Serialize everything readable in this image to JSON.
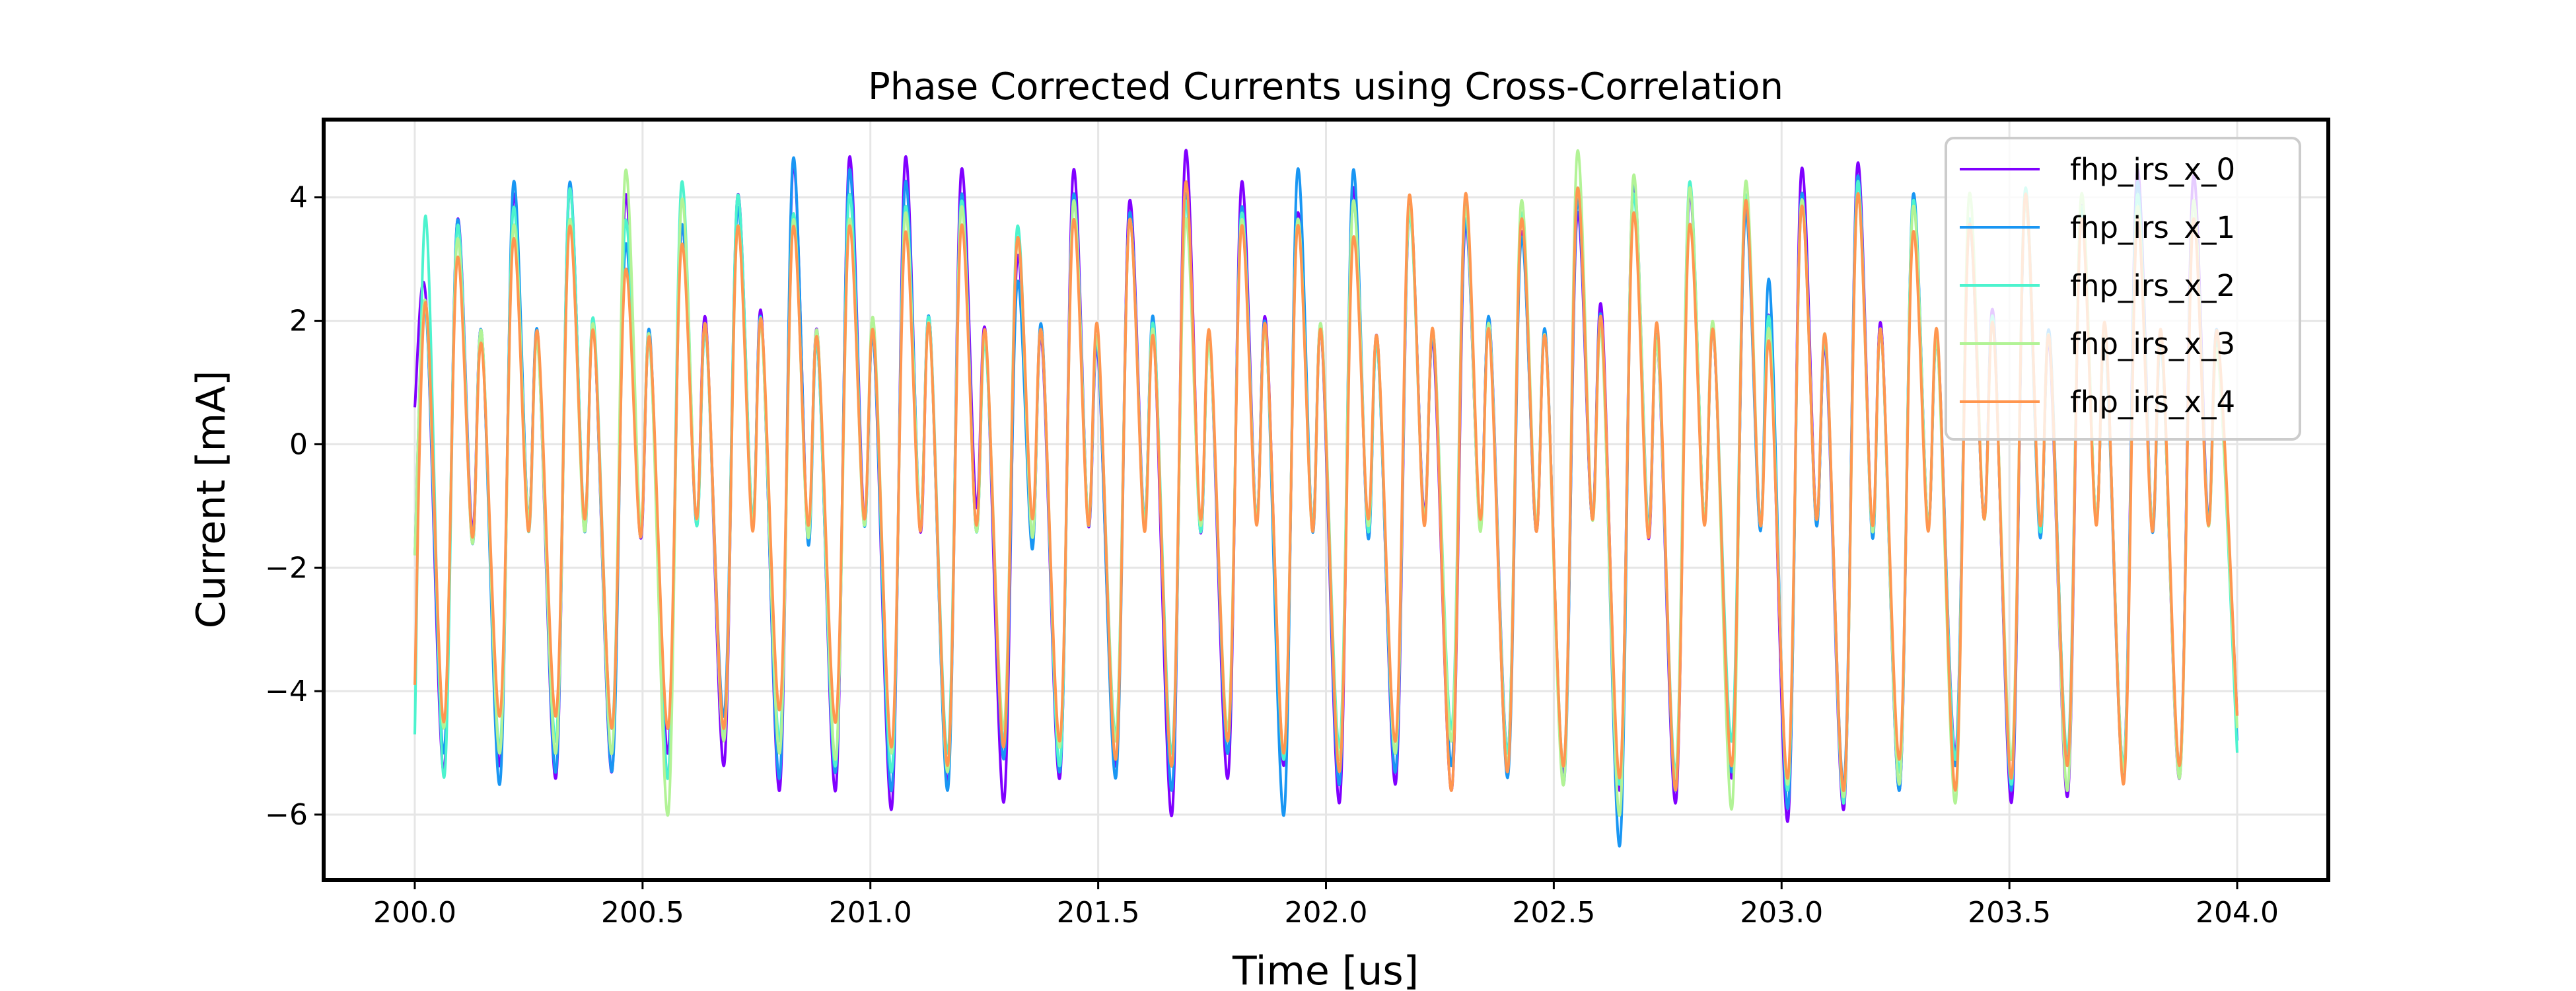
{
  "chart_data": {
    "type": "line",
    "title": "Phase Corrected Currents using Cross-Correlation",
    "xlabel": "Time [us]",
    "ylabel": "Current [mA]",
    "xlim": [
      199.8,
      204.2
    ],
    "ylim": [
      -7.06,
      5.26
    ],
    "xticks": [
      "200.0",
      "200.5",
      "201.0",
      "201.5",
      "202.0",
      "202.5",
      "203.0",
      "203.5",
      "204.0"
    ],
    "yticks": [
      "−6",
      "−4",
      "−2",
      "0",
      "2",
      "4"
    ],
    "grid": true,
    "legend_position": "top-right",
    "x": [
      200.0,
      200.024,
      200.064,
      200.093,
      200.126,
      200.147,
      200.187,
      200.216,
      200.249,
      200.27,
      200.31,
      200.339,
      200.372,
      200.393,
      200.433,
      200.462,
      200.495,
      200.516,
      200.556,
      200.585,
      200.618,
      200.639,
      200.679,
      200.708,
      200.741,
      200.761,
      200.801,
      200.83,
      200.863,
      200.884,
      200.924,
      200.953,
      200.986,
      201.007,
      201.047,
      201.076,
      201.109,
      201.13,
      201.17,
      201.199,
      201.232,
      201.253,
      201.293,
      201.322,
      201.355,
      201.376,
      201.416,
      201.445,
      201.478,
      201.499,
      201.539,
      201.568,
      201.601,
      201.622,
      201.662,
      201.691,
      201.724,
      201.745,
      201.785,
      201.814,
      201.847,
      201.868,
      201.908,
      201.937,
      201.97,
      201.99,
      202.03,
      202.059,
      202.092,
      202.113,
      202.153,
      202.182,
      202.215,
      202.236,
      202.276,
      202.305,
      202.338,
      202.359,
      202.399,
      202.428,
      202.461,
      202.482,
      202.522,
      202.551,
      202.584,
      202.605,
      202.645,
      202.674,
      202.707,
      202.728,
      202.768,
      202.797,
      202.83,
      202.851,
      202.891,
      202.92,
      202.953,
      202.974,
      203.014,
      203.043,
      203.076,
      203.097,
      203.137,
      203.166,
      203.199,
      203.219,
      203.259,
      203.288,
      203.321,
      203.342,
      203.382,
      203.411,
      203.444,
      203.465,
      203.505,
      203.534,
      203.567,
      203.588,
      203.628,
      203.657,
      203.69,
      203.711,
      203.751,
      203.78,
      203.813,
      203.834,
      203.874,
      203.903,
      203.936,
      203.957,
      204.0
    ],
    "series": [
      {
        "name": "fhp_irs_x_0",
        "color": "#8000ff",
        "values": [
          0.6,
          2.4,
          -5.3,
          3.6,
          -1.4,
          1.8,
          -5.2,
          4.0,
          -1.2,
          1.7,
          -5.4,
          4.1,
          -1.3,
          1.9,
          -5.3,
          4.0,
          -1.5,
          1.7,
          -5.0,
          3.5,
          -1.2,
          2.0,
          -5.2,
          4.0,
          -1.3,
          2.1,
          -5.6,
          4.5,
          -1.5,
          1.8,
          -5.6,
          4.6,
          -1.2,
          1.7,
          -5.9,
          4.6,
          -1.4,
          2.0,
          -5.5,
          4.4,
          -1.0,
          1.8,
          -5.8,
          3.0,
          -1.6,
          1.7,
          -5.4,
          4.4,
          -1.3,
          1.5,
          -5.2,
          3.9,
          -1.2,
          1.8,
          -6.0,
          4.7,
          -1.4,
          1.7,
          -5.4,
          4.2,
          -1.2,
          2.0,
          -5.2,
          3.7,
          -1.3,
          1.8,
          -5.8,
          4.1,
          -1.5,
          1.7,
          -5.5,
          3.7,
          -1.1,
          1.6,
          -5.6,
          3.5,
          -1.3,
          2.0,
          -5.0,
          3.4,
          -1.4,
          1.7,
          -5.3,
          3.7,
          -1.2,
          2.2,
          -5.6,
          4.2,
          -1.5,
          1.6,
          -5.8,
          4.0,
          -1.2,
          1.8,
          -5.4,
          3.8,
          -1.3,
          2.0,
          -6.1,
          4.4,
          -1.2,
          1.5,
          -5.9,
          4.5,
          -1.4,
          1.9,
          -5.6,
          3.9,
          -1.3,
          1.7,
          -5.0,
          3.6,
          -1.2,
          2.1,
          -5.8,
          4.0,
          -1.4,
          1.6,
          -5.7,
          3.8,
          -1.2,
          1.8,
          -5.2,
          4.4,
          -1.3,
          1.7,
          -5.4,
          4.3,
          -1.2,
          1.6,
          -4.4
        ]
      },
      {
        "name": "fhp_irs_x_1",
        "color": "#1996f3",
        "values": [
          -1.8,
          2.2,
          -5.0,
          3.6,
          -1.6,
          1.8,
          -5.5,
          4.2,
          -1.2,
          1.8,
          -5.3,
          4.2,
          -1.4,
          1.9,
          -5.3,
          3.2,
          -1.5,
          1.8,
          -5.4,
          3.5,
          -1.3,
          1.8,
          -4.4,
          3.8,
          -1.2,
          2.0,
          -5.4,
          4.6,
          -1.6,
          1.6,
          -5.3,
          4.4,
          -1.3,
          1.7,
          -5.6,
          4.2,
          -1.2,
          2.0,
          -5.6,
          4.0,
          -1.4,
          1.7,
          -5.1,
          2.6,
          -1.7,
          1.9,
          -5.3,
          4.0,
          -1.2,
          1.6,
          -5.4,
          3.7,
          -1.3,
          2.0,
          -5.6,
          4.0,
          -1.3,
          1.7,
          -5.0,
          3.8,
          -1.2,
          1.9,
          -6.0,
          4.4,
          -1.4,
          1.8,
          -5.5,
          4.4,
          -1.5,
          1.6,
          -5.3,
          3.9,
          -1.2,
          1.7,
          -5.2,
          3.6,
          -1.3,
          2.0,
          -5.4,
          3.3,
          -1.4,
          1.8,
          -5.5,
          3.9,
          -1.2,
          2.0,
          -6.5,
          4.2,
          -1.3,
          1.7,
          -5.6,
          4.1,
          -1.2,
          1.8,
          -5.3,
          3.7,
          -1.4,
          2.6,
          -5.9,
          4.0,
          -1.3,
          1.6,
          -5.5,
          4.3,
          -1.5,
          1.8,
          -5.6,
          4.0,
          -1.3,
          1.6,
          -5.2,
          3.5,
          -1.2,
          2.0,
          -5.6,
          3.9,
          -1.5,
          1.8,
          -5.1,
          3.7,
          -1.2,
          1.7,
          -5.4,
          4.2,
          -1.4,
          1.6,
          -5.2,
          3.9,
          -1.2,
          1.8,
          -4.8
        ]
      },
      {
        "name": "fhp_irs_x_2",
        "color": "#4df3ce",
        "values": [
          -4.7,
          3.7,
          -5.4,
          3.5,
          -1.5,
          1.8,
          -4.9,
          3.8,
          -1.4,
          1.7,
          -4.8,
          4.1,
          -1.2,
          2.0,
          -4.6,
          3.6,
          -1.4,
          1.6,
          -5.4,
          4.2,
          -1.3,
          1.8,
          -4.7,
          4.0,
          -1.2,
          2.0,
          -4.8,
          3.7,
          -1.5,
          1.6,
          -5.2,
          4.0,
          -1.3,
          1.8,
          -5.3,
          3.8,
          -1.2,
          2.0,
          -5.0,
          3.9,
          -1.4,
          1.6,
          -4.8,
          3.5,
          -1.5,
          1.8,
          -5.2,
          3.9,
          -1.3,
          1.7,
          -4.7,
          3.6,
          -1.2,
          1.9,
          -5.0,
          3.9,
          -1.4,
          1.6,
          -4.8,
          3.7,
          -1.2,
          1.8,
          -5.1,
          3.6,
          -1.3,
          1.9,
          -4.9,
          3.9,
          -1.4,
          1.6,
          -5.0,
          3.7,
          -1.2,
          1.8,
          -4.6,
          3.9,
          -1.3,
          1.9,
          -5.0,
          3.7,
          -1.3,
          1.7,
          -5.2,
          4.1,
          -1.2,
          1.9,
          -5.5,
          4.0,
          -1.4,
          1.7,
          -5.3,
          4.2,
          -1.2,
          1.8,
          -4.8,
          4.0,
          -1.3,
          2.0,
          -5.6,
          3.8,
          -1.2,
          1.6,
          -5.8,
          4.2,
          -1.4,
          1.8,
          -5.3,
          3.9,
          -1.3,
          1.7,
          -5.1,
          3.6,
          -1.2,
          2.0,
          -5.5,
          4.1,
          -1.4,
          1.7,
          -5.0,
          3.8,
          -1.2,
          1.8,
          -5.2,
          4.0,
          -1.3,
          1.7,
          -5.3,
          3.9,
          -1.3,
          1.6,
          -5.0
        ]
      },
      {
        "name": "fhp_irs_x_3",
        "color": "#b2f396",
        "values": [
          -1.8,
          2.3,
          -4.6,
          3.3,
          -1.6,
          1.8,
          -5.0,
          3.5,
          -1.2,
          1.6,
          -5.0,
          3.6,
          -1.4,
          1.9,
          -5.0,
          4.4,
          -1.3,
          1.7,
          -6.0,
          3.9,
          -1.2,
          1.9,
          -4.8,
          3.5,
          -1.3,
          1.9,
          -5.0,
          3.6,
          -1.5,
          1.8,
          -5.1,
          3.6,
          -1.3,
          2.0,
          -5.0,
          3.7,
          -1.2,
          1.9,
          -5.3,
          3.8,
          -1.4,
          1.7,
          -4.6,
          3.3,
          -1.5,
          1.8,
          -4.9,
          3.9,
          -1.2,
          1.7,
          -4.8,
          3.6,
          -1.3,
          1.8,
          -5.2,
          3.6,
          -1.3,
          1.6,
          -4.6,
          3.6,
          -1.2,
          1.8,
          -5.0,
          3.6,
          -1.4,
          1.9,
          -5.1,
          3.9,
          -1.3,
          1.7,
          -5.0,
          3.8,
          -1.2,
          1.8,
          -4.8,
          3.8,
          -1.4,
          1.9,
          -5.2,
          3.9,
          -1.3,
          1.7,
          -5.5,
          4.7,
          -1.2,
          1.8,
          -6.0,
          4.3,
          -1.4,
          1.6,
          -5.4,
          4.1,
          -1.2,
          1.9,
          -5.9,
          4.2,
          -1.3,
          1.8,
          -5.5,
          3.9,
          -1.2,
          1.7,
          -5.7,
          4.0,
          -1.4,
          1.8,
          -5.5,
          3.8,
          -1.3,
          1.6,
          -5.8,
          4.0,
          -1.2,
          1.9,
          -5.1,
          3.9,
          -1.3,
          1.7,
          -5.6,
          4.0,
          -1.2,
          1.8,
          -5.3,
          3.8,
          -1.3,
          1.7,
          -5.4,
          3.9,
          -1.3,
          1.5,
          -4.6
        ]
      },
      {
        "name": "fhp_irs_x_4",
        "color": "#ff964f",
        "values": [
          -3.9,
          2.3,
          -4.5,
          3.0,
          -1.5,
          1.6,
          -4.4,
          3.3,
          -1.4,
          1.8,
          -4.4,
          3.5,
          -1.2,
          1.8,
          -4.6,
          2.8,
          -1.5,
          1.7,
          -4.6,
          3.2,
          -1.2,
          1.9,
          -4.6,
          3.5,
          -1.4,
          2.0,
          -4.3,
          3.5,
          -1.3,
          1.7,
          -4.5,
          3.5,
          -1.2,
          1.8,
          -4.9,
          3.4,
          -1.4,
          1.9,
          -5.2,
          3.5,
          -1.3,
          1.8,
          -4.9,
          3.3,
          -1.2,
          1.8,
          -4.8,
          3.6,
          -1.3,
          1.9,
          -5.1,
          3.6,
          -1.4,
          1.7,
          -5.2,
          4.2,
          -1.2,
          1.8,
          -4.8,
          3.5,
          -1.3,
          1.9,
          -5.0,
          3.5,
          -1.4,
          1.8,
          -5.3,
          3.3,
          -1.2,
          1.7,
          -4.8,
          4.0,
          -1.3,
          1.8,
          -5.6,
          4.0,
          -1.2,
          1.8,
          -5.3,
          3.6,
          -1.4,
          1.7,
          -5.2,
          4.1,
          -1.2,
          2.0,
          -5.4,
          3.7,
          -1.5,
          1.9,
          -5.6,
          3.5,
          -1.3,
          1.8,
          -5.2,
          3.9,
          -1.3,
          1.6,
          -5.4,
          3.8,
          -1.2,
          1.7,
          -5.6,
          4.0,
          -1.3,
          1.8,
          -5.1,
          3.4,
          -1.4,
          1.8,
          -5.6,
          3.5,
          -1.2,
          1.9,
          -5.4,
          4.0,
          -1.3,
          1.7,
          -5.2,
          3.6,
          -1.3,
          1.9,
          -5.5,
          3.6,
          -1.4,
          1.8,
          -5.2,
          3.6,
          -1.3,
          1.8,
          -4.4
        ]
      }
    ]
  }
}
